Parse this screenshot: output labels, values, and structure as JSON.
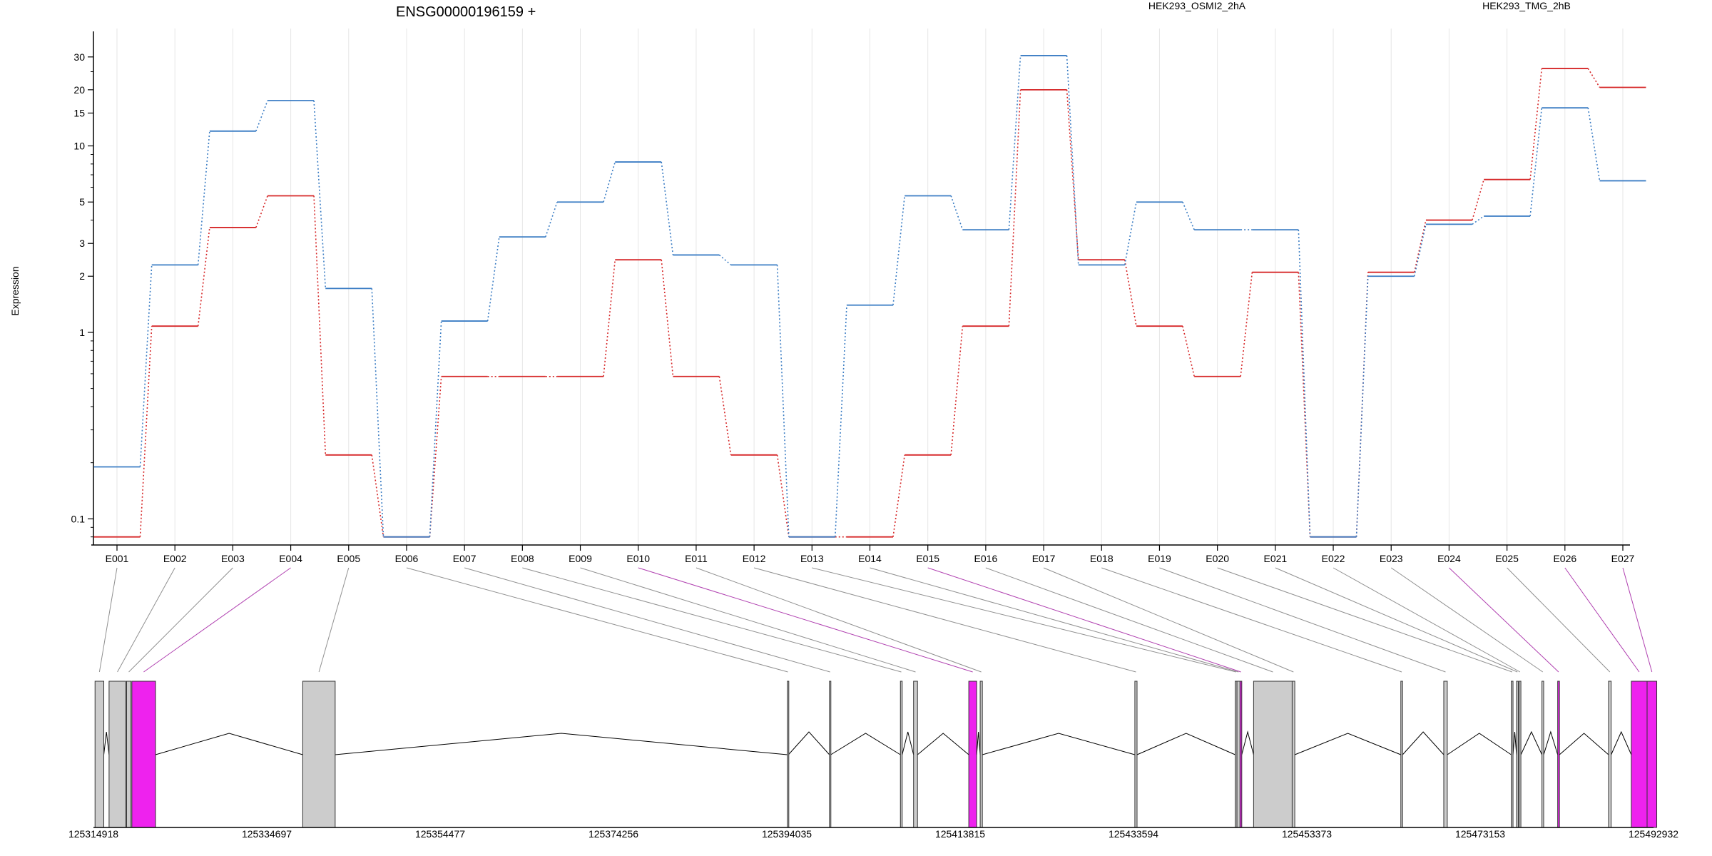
{
  "chart_data": {
    "type": "line",
    "title": "ENSG00000196159 +",
    "ylabel": "Expression",
    "y_scale": "log",
    "ylim": [
      0.075,
      37
    ],
    "y_ticks": [
      0.1,
      1,
      2,
      3,
      5,
      10,
      15,
      20,
      30
    ],
    "grid": "vertical-light",
    "legend_position": "top-right",
    "categories": [
      "E001",
      "E002",
      "E003",
      "E004",
      "E005",
      "E006",
      "E007",
      "E008",
      "E009",
      "E010",
      "E011",
      "E012",
      "E013",
      "E014",
      "E015",
      "E016",
      "E017",
      "E018",
      "E019",
      "E020",
      "E021",
      "E022",
      "E023",
      "E024",
      "E025",
      "E026",
      "E027"
    ],
    "series": [
      {
        "name": "HEK293_OSMI2_2hA",
        "color": "#d62728",
        "values": [
          0.08,
          1.08,
          3.65,
          5.4,
          0.22,
          0.08,
          0.58,
          0.58,
          0.58,
          2.45,
          0.58,
          0.22,
          0.08,
          0.08,
          0.22,
          1.08,
          20,
          2.45,
          1.08,
          0.58,
          2.1,
          0.08,
          2.1,
          4.0,
          6.6,
          26,
          20.6
        ]
      },
      {
        "name": "HEK293_TMG_2hB",
        "color": "#3b7dc4",
        "values": [
          0.19,
          2.3,
          12,
          17.5,
          1.72,
          0.08,
          1.15,
          3.25,
          5.0,
          8.2,
          2.6,
          2.3,
          0.08,
          1.4,
          5.4,
          3.55,
          30.5,
          2.3,
          5.0,
          3.55,
          3.55,
          0.08,
          2.0,
          3.8,
          4.2,
          16,
          6.5
        ]
      }
    ],
    "exon_types": [
      "gray",
      "gray",
      "gray",
      "magenta",
      "gray",
      "gray",
      "gray",
      "gray",
      "gray",
      "magenta",
      "gray",
      "gray",
      "gray",
      "gray",
      "magenta",
      "gray",
      "gray",
      "gray",
      "gray",
      "gray",
      "gray",
      "gray",
      "gray",
      "magenta",
      "gray",
      "magenta",
      "magenta"
    ],
    "genome": {
      "start": 125314918,
      "end": 125492932,
      "tick_labels": [
        "125314918",
        "125334697",
        "125354477",
        "125374256",
        "125394035",
        "125413815",
        "125433594",
        "125453373",
        "125473153",
        "125492932"
      ],
      "exons": [
        {
          "id": "E001",
          "start": 125315100,
          "end": 125316100
        },
        {
          "id": "E002",
          "start": 125316700,
          "end": 125318600
        },
        {
          "id": "E003",
          "start": 125318700,
          "end": 125319200
        },
        {
          "id": "E004",
          "start": 125319300,
          "end": 125322000
        },
        {
          "id": "E005",
          "start": 125338800,
          "end": 125342500
        },
        {
          "id": "E006",
          "start": 125394100,
          "end": 125394220
        },
        {
          "id": "E007",
          "start": 125398900,
          "end": 125399050
        },
        {
          "id": "E008",
          "start": 125407000,
          "end": 125407200
        },
        {
          "id": "E009",
          "start": 125408500,
          "end": 125408950
        },
        {
          "id": "E010",
          "start": 125414800,
          "end": 125415700
        },
        {
          "id": "E011",
          "start": 125416100,
          "end": 125416350
        },
        {
          "id": "E012",
          "start": 125433750,
          "end": 125434000
        },
        {
          "id": "E013",
          "start": 125445200,
          "end": 125445400
        },
        {
          "id": "E014",
          "start": 125445400,
          "end": 125445750
        },
        {
          "id": "E015",
          "start": 125445750,
          "end": 125445950
        },
        {
          "id": "E016",
          "start": 125447300,
          "end": 125451700
        },
        {
          "id": "E017",
          "start": 125451700,
          "end": 125452000
        },
        {
          "id": "E018",
          "start": 125464100,
          "end": 125464300
        },
        {
          "id": "E019",
          "start": 125469000,
          "end": 125469400
        },
        {
          "id": "E020",
          "start": 125476700,
          "end": 125476900
        },
        {
          "id": "E021",
          "start": 125477300,
          "end": 125477500
        },
        {
          "id": "E022",
          "start": 125477600,
          "end": 125477800
        },
        {
          "id": "E023",
          "start": 125480200,
          "end": 125480400
        },
        {
          "id": "E024",
          "start": 125482000,
          "end": 125482200
        },
        {
          "id": "E025",
          "start": 125487800,
          "end": 125488100
        },
        {
          "id": "E026",
          "start": 125490400,
          "end": 125492200
        },
        {
          "id": "E027",
          "start": 125492200,
          "end": 125493300
        }
      ]
    }
  }
}
